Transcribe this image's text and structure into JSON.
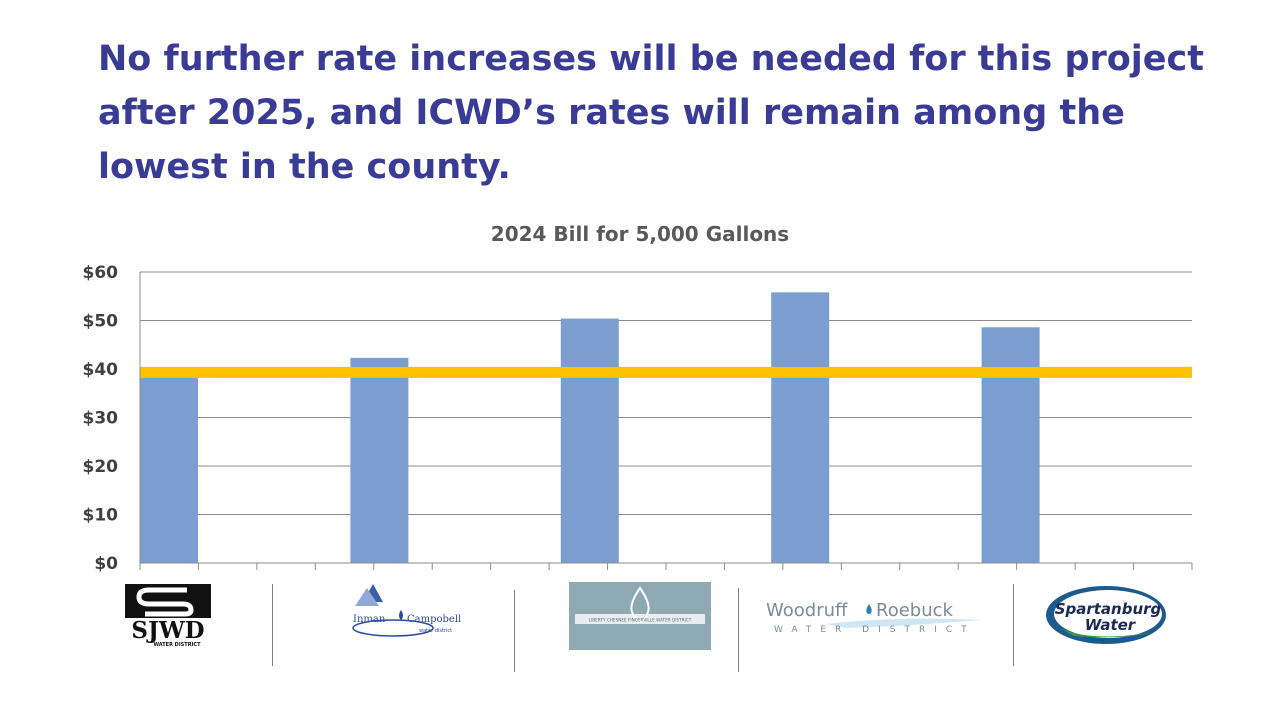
{
  "slide": {
    "headline": "No further rate increases will be needed for this project after 2025, and ICWD’s rates will remain among the lowest in the county."
  },
  "chart_data": {
    "type": "bar",
    "title": "2024 Bill for 5,000 Gallons",
    "xlabel": "",
    "ylabel": "",
    "ylim": [
      0,
      60
    ],
    "yticks": [
      "$0",
      "$10",
      "$20",
      "$30",
      "$40",
      "$50",
      "$60"
    ],
    "ytick_values": [
      0,
      10,
      20,
      30,
      40,
      50,
      60
    ],
    "categories": [
      "SJWD Water District",
      "Inman Campobello Water District",
      "Liberty Chesnee Fingerville Water District",
      "Woodruff Roebuck Water District",
      "Spartanburg Water"
    ],
    "values": [
      39.5,
      42.3,
      50.4,
      55.8,
      48.6
    ],
    "reference_line": {
      "value": 39.3
    },
    "grid": true,
    "legend": "none",
    "bar_color": "#7b9dd0",
    "line_color": "#ffc000"
  },
  "logos": {
    "sjwd": {
      "main": "SJWD",
      "sub": "WATER DISTRICT"
    },
    "inman": {
      "left": "Inman",
      "right": "Campobello",
      "sub": "water district"
    },
    "lcf": {
      "text": "LIBERTY CHESNEE FINGERVILLE WATER DISTRICT"
    },
    "wr": {
      "left": "Woodruff",
      "right": "Roebuck",
      "sub": "WATER DISTRICT"
    },
    "spartanburg": {
      "line1": "Spartanburg",
      "line2": "Water"
    }
  },
  "colors": {
    "headline": "#3a3b94",
    "bar": "#7b9dd0",
    "reference_line": "#ffc000"
  }
}
